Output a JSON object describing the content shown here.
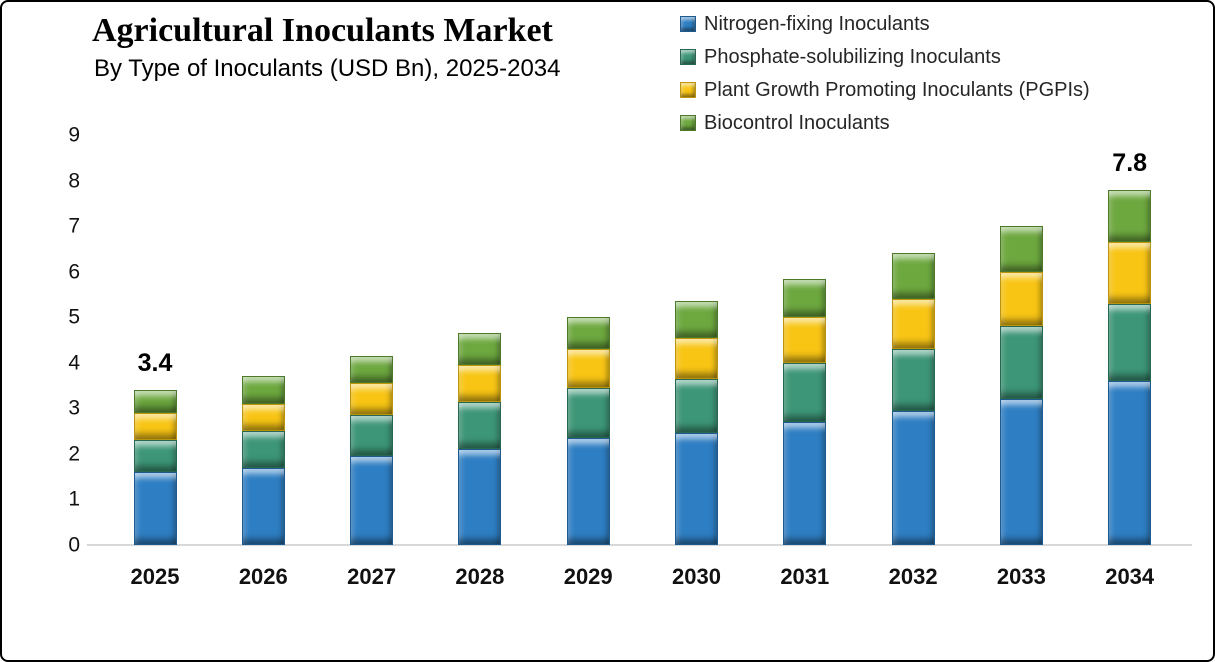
{
  "header": {
    "title": "Agricultural Inoculants Market",
    "subtitle": "By Type of Inoculants (USD Bn), 2025-2034"
  },
  "colors": {
    "nitrogen_blue": "#2e7ec3",
    "nitrogen_blue_border": "#1c5a8f",
    "phosphate_teal": "#3d9677",
    "phosphate_teal_border": "#286851",
    "pgpi_yellow": "#f8c515",
    "pgpi_yellow_border": "#bc950c",
    "biocontrol_green": "#6da83f",
    "biocontrol_green_border": "#4c7a28",
    "baseline_gray": "#d8d8d8"
  },
  "chart_data": {
    "type": "bar",
    "stacked": true,
    "title": "Agricultural Inoculants Market",
    "subtitle": "By Type of Inoculants (USD Bn), 2025-2034",
    "unit": "USD Bn",
    "categories": [
      "2025",
      "2026",
      "2027",
      "2028",
      "2029",
      "2030",
      "2031",
      "2032",
      "2033",
      "2034"
    ],
    "series": [
      {
        "name": "Nitrogen-fixing Inoculants",
        "key": "nitrogen-fixing",
        "color": "#2e7ec3",
        "border": "#1c5a8f",
        "values": [
          1.6,
          1.7,
          1.95,
          2.1,
          2.35,
          2.45,
          2.7,
          2.95,
          3.2,
          3.6
        ]
      },
      {
        "name": "Phosphate-solubilizing Inoculants",
        "key": "phosphate-solubilizing",
        "color": "#3d9677",
        "border": "#286851",
        "values": [
          0.7,
          0.8,
          0.9,
          1.05,
          1.1,
          1.2,
          1.3,
          1.35,
          1.6,
          1.7
        ]
      },
      {
        "name": "Plant Growth Promoting Inoculants (PGPIs)",
        "key": "pgpi",
        "color": "#f8c515",
        "border": "#bc950c",
        "values": [
          0.6,
          0.6,
          0.7,
          0.8,
          0.85,
          0.9,
          1.0,
          1.1,
          1.2,
          1.35
        ]
      },
      {
        "name": "Biocontrol Inoculants",
        "key": "biocontrol",
        "color": "#6da83f",
        "border": "#4c7a28",
        "values": [
          0.5,
          0.6,
          0.6,
          0.7,
          0.7,
          0.8,
          0.85,
          1.0,
          1.0,
          1.15
        ]
      }
    ],
    "totals": [
      3.4,
      3.7,
      4.15,
      4.65,
      5.0,
      5.35,
      5.85,
      6.4,
      7.0,
      7.8
    ],
    "data_labels": [
      {
        "category_index": 0,
        "text": "3.4"
      },
      {
        "category_index": 9,
        "text": "7.8"
      }
    ],
    "yticks": [
      "0",
      "1",
      "2",
      "3",
      "4",
      "5",
      "6",
      "7",
      "8",
      "9"
    ],
    "ylim": [
      0,
      9
    ],
    "grid": false,
    "legend_position": "top-right"
  }
}
